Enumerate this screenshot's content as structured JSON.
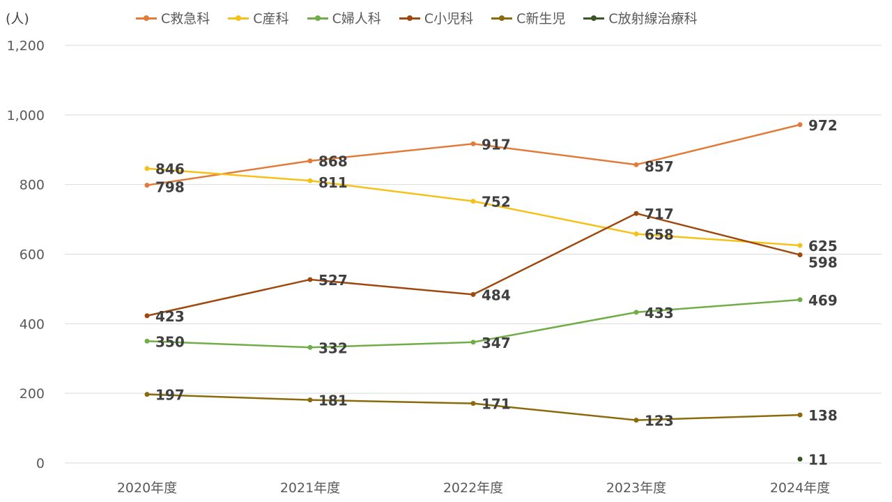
{
  "unit_label": "(人)",
  "chart_data": {
    "type": "line",
    "categories": [
      "2020年度",
      "2021年度",
      "2022年度",
      "2023年度",
      "2024年度"
    ],
    "ylim": [
      0,
      1200
    ],
    "yticks": [
      0,
      200,
      400,
      600,
      800,
      1000,
      1200
    ],
    "ytick_labels": [
      "0",
      "200",
      "400",
      "600",
      "800",
      "1,000",
      "1,200"
    ],
    "grid": true,
    "legend_position": "top",
    "series": [
      {
        "name": "C救急科",
        "color": "#E07B39",
        "values": [
          798,
          868,
          917,
          857,
          972
        ]
      },
      {
        "name": "C産科",
        "color": "#F5C018",
        "values": [
          846,
          811,
          752,
          658,
          625
        ]
      },
      {
        "name": "C婦人科",
        "color": "#70AD47",
        "values": [
          350,
          332,
          347,
          433,
          469
        ]
      },
      {
        "name": "C小児科",
        "color": "#9E480E",
        "values": [
          423,
          527,
          484,
          717,
          598
        ]
      },
      {
        "name": "C新生児",
        "color": "#8A6A0A",
        "values": [
          197,
          181,
          171,
          123,
          138
        ]
      },
      {
        "name": "C放射線治療科",
        "color": "#375623",
        "values": [
          null,
          null,
          null,
          null,
          11
        ]
      }
    ]
  }
}
